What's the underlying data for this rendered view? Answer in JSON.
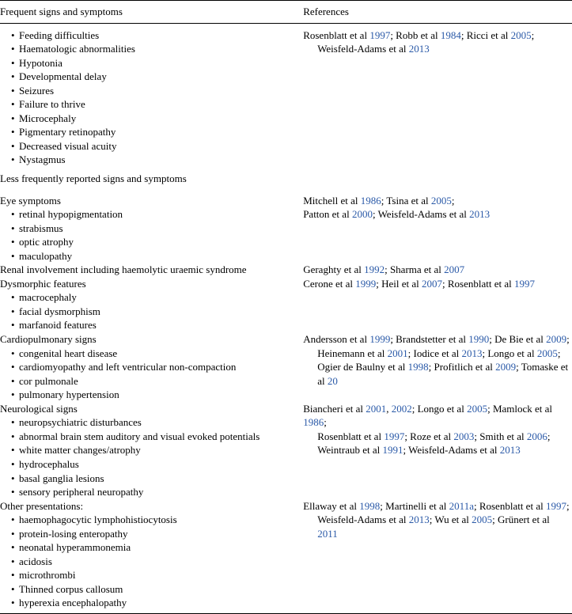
{
  "table": {
    "header": {
      "colA": "Frequent signs and symptoms",
      "colB": "References"
    },
    "subheader_less": "Less frequently reported signs and symptoms",
    "freq_symptoms": [
      "Feeding difficulties",
      "Haematologic abnormalities",
      "Hypotonia",
      "Developmental delay",
      "Seizures",
      "Failure to thrive",
      "Microcephaly",
      "Pigmentary retinopathy",
      "Decreased visual acuity",
      "Nystagmus"
    ],
    "freq_refs": [
      {
        "indent": false,
        "segs": [
          {
            "t": "Rosenblatt et al "
          },
          {
            "t": "1997",
            "cite": true
          },
          {
            "t": "; Robb et al "
          },
          {
            "t": "1984",
            "cite": true
          },
          {
            "t": "; Ricci et al "
          },
          {
            "t": "2005",
            "cite": true
          },
          {
            "t": ";"
          }
        ]
      },
      {
        "indent": true,
        "segs": [
          {
            "t": "Weisfeld-Adams et al "
          },
          {
            "t": "2013",
            "cite": true
          }
        ]
      }
    ],
    "groups": [
      {
        "heading": "Eye symptoms",
        "symptoms": [
          "retinal hypopigmentation",
          "strabismus",
          "optic atrophy",
          "maculopathy"
        ],
        "refs": [
          {
            "indent": false,
            "segs": [
              {
                "t": "Mitchell et al "
              },
              {
                "t": "1986",
                "cite": true
              },
              {
                "t": "; Tsina et al "
              },
              {
                "t": "2005",
                "cite": true
              },
              {
                "t": ";"
              }
            ]
          },
          {
            "indent": false,
            "segs": [
              {
                "t": "Patton et al "
              },
              {
                "t": "2000",
                "cite": true
              },
              {
                "t": "; Weisfeld-Adams et al "
              },
              {
                "t": "2013",
                "cite": true
              }
            ]
          }
        ]
      },
      {
        "heading": "Renal involvement including haemolytic uraemic syndrome",
        "symptoms": [],
        "refs": [
          {
            "indent": false,
            "segs": [
              {
                "t": "Geraghty et al "
              },
              {
                "t": "1992",
                "cite": true
              },
              {
                "t": "; Sharma et al "
              },
              {
                "t": "2007",
                "cite": true
              }
            ]
          }
        ]
      },
      {
        "heading": "Dysmorphic features",
        "symptoms": [
          "macrocephaly",
          "facial dysmorphism",
          "marfanoid features"
        ],
        "refs": [
          {
            "indent": false,
            "segs": [
              {
                "t": "Cerone et al "
              },
              {
                "t": "1999",
                "cite": true
              },
              {
                "t": "; Heil et al "
              },
              {
                "t": "2007",
                "cite": true
              },
              {
                "t": "; Rosenblatt et al "
              },
              {
                "t": "1997",
                "cite": true
              }
            ]
          }
        ]
      },
      {
        "heading": "Cardiopulmonary signs",
        "symptoms": [
          "congenital heart disease",
          "cardiomyopathy and left ventricular non-compaction",
          "cor pulmonale",
          "pulmonary hypertension"
        ],
        "refs": [
          {
            "indent": false,
            "segs": [
              {
                "t": "Andersson et al "
              },
              {
                "t": "1999",
                "cite": true
              },
              {
                "t": "; Brandstetter et al "
              },
              {
                "t": "1990",
                "cite": true
              },
              {
                "t": "; De Bie et al "
              },
              {
                "t": "2009",
                "cite": true
              },
              {
                "t": ";"
              }
            ]
          },
          {
            "indent": true,
            "segs": [
              {
                "t": "Heinemann et al "
              },
              {
                "t": "2001",
                "cite": true
              },
              {
                "t": "; Iodice et al "
              },
              {
                "t": "2013",
                "cite": true
              },
              {
                "t": "; Longo et al "
              },
              {
                "t": "2005",
                "cite": true
              },
              {
                "t": ";"
              }
            ]
          },
          {
            "indent": true,
            "segs": [
              {
                "t": "Ogier de Baulny et al "
              },
              {
                "t": "1998",
                "cite": true
              },
              {
                "t": "; Profitlich et al "
              },
              {
                "t": "2009",
                "cite": true
              },
              {
                "t": "; Tomaske et al "
              },
              {
                "t": "20",
                "cite": true
              }
            ]
          }
        ]
      },
      {
        "heading": "Neurological signs",
        "symptoms": [
          "neuropsychiatric disturbances",
          "abnormal brain stem auditory and visual evoked potentials",
          "white matter changes/atrophy",
          "hydrocephalus",
          "basal ganglia lesions",
          "sensory peripheral neuropathy"
        ],
        "refs": [
          {
            "indent": false,
            "segs": [
              {
                "t": "Biancheri et al "
              },
              {
                "t": "2001",
                "cite": true
              },
              {
                "t": ", "
              },
              {
                "t": "2002",
                "cite": true
              },
              {
                "t": "; Longo et al "
              },
              {
                "t": "2005",
                "cite": true
              },
              {
                "t": "; Mamlock et al "
              },
              {
                "t": "1986",
                "cite": true
              },
              {
                "t": ";"
              }
            ]
          },
          {
            "indent": true,
            "segs": [
              {
                "t": "Rosenblatt et al "
              },
              {
                "t": "1997",
                "cite": true
              },
              {
                "t": "; Roze et al "
              },
              {
                "t": "2003",
                "cite": true
              },
              {
                "t": "; Smith et al "
              },
              {
                "t": "2006",
                "cite": true
              },
              {
                "t": ";"
              }
            ]
          },
          {
            "indent": true,
            "segs": [
              {
                "t": "Weintraub et al "
              },
              {
                "t": "1991",
                "cite": true
              },
              {
                "t": "; Weisfeld-Adams et al "
              },
              {
                "t": "2013",
                "cite": true
              }
            ]
          }
        ]
      },
      {
        "heading": "Other presentations:",
        "symptoms": [
          "haemophagocytic lymphohistiocytosis",
          "protein-losing enteropathy",
          "neonatal hyperammonemia",
          "acidosis",
          "microthrombi",
          "Thinned corpus callosum",
          "hyperexia encephalopathy"
        ],
        "refs": [
          {
            "indent": false,
            "segs": [
              {
                "t": "Ellaway et al "
              },
              {
                "t": "1998",
                "cite": true
              },
              {
                "t": "; Martinelli et al "
              },
              {
                "t": "2011a",
                "cite": true
              },
              {
                "t": "; Rosenblatt et al "
              },
              {
                "t": "1997",
                "cite": true
              },
              {
                "t": ";"
              }
            ]
          },
          {
            "indent": true,
            "segs": [
              {
                "t": "Weisfeld-Adams et al "
              },
              {
                "t": "2013",
                "cite": true
              },
              {
                "t": "; Wu et al "
              },
              {
                "t": "2005",
                "cite": true
              },
              {
                "t": "; Grünert et al "
              },
              {
                "t": "2011",
                "cite": true
              }
            ]
          }
        ]
      }
    ]
  }
}
